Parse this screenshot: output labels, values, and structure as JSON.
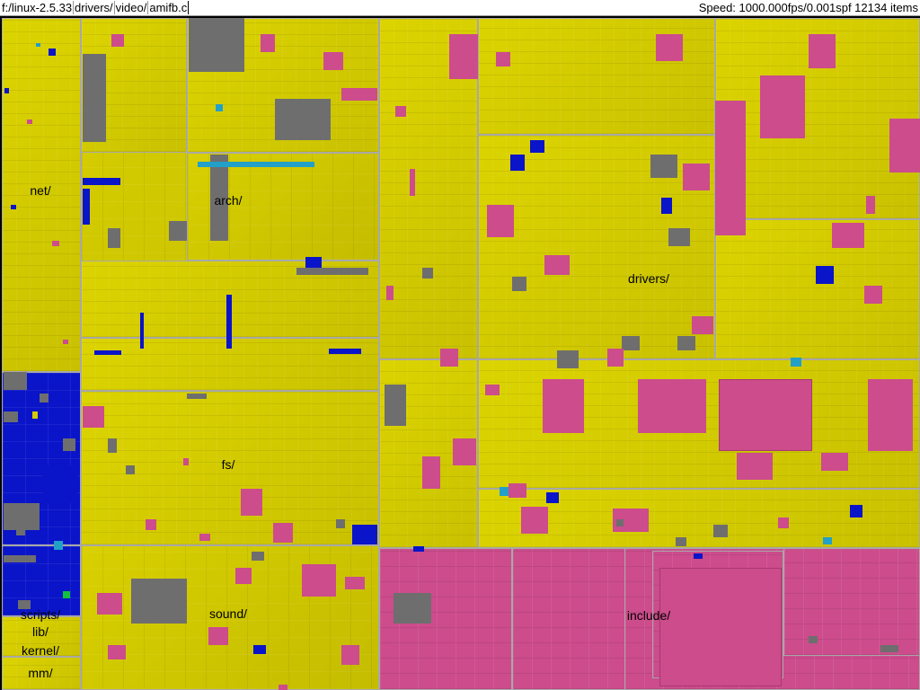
{
  "header": {
    "path_segments": [
      "f:/linux-2.5.33",
      "drivers/",
      "video/",
      "amifb.c"
    ],
    "status": "Speed: 1000.000fps/0.001spf 12134 items"
  },
  "labels": {
    "net": "net/",
    "arch": "arch/",
    "drivers": "drivers/",
    "fs": "fs/",
    "scripts": "scripts/",
    "lib": "lib/",
    "kernel": "kernel/",
    "mm": "mm/",
    "sound": "sound/",
    "include": "include/"
  },
  "colors": {
    "source_file": "#d4cc00",
    "header_file": "#cc4c8c",
    "script_file": "#0a14c8",
    "other_file": "#6e6e6e",
    "misc_file": "#22a0c8",
    "frame": "#a8a8a8"
  }
}
